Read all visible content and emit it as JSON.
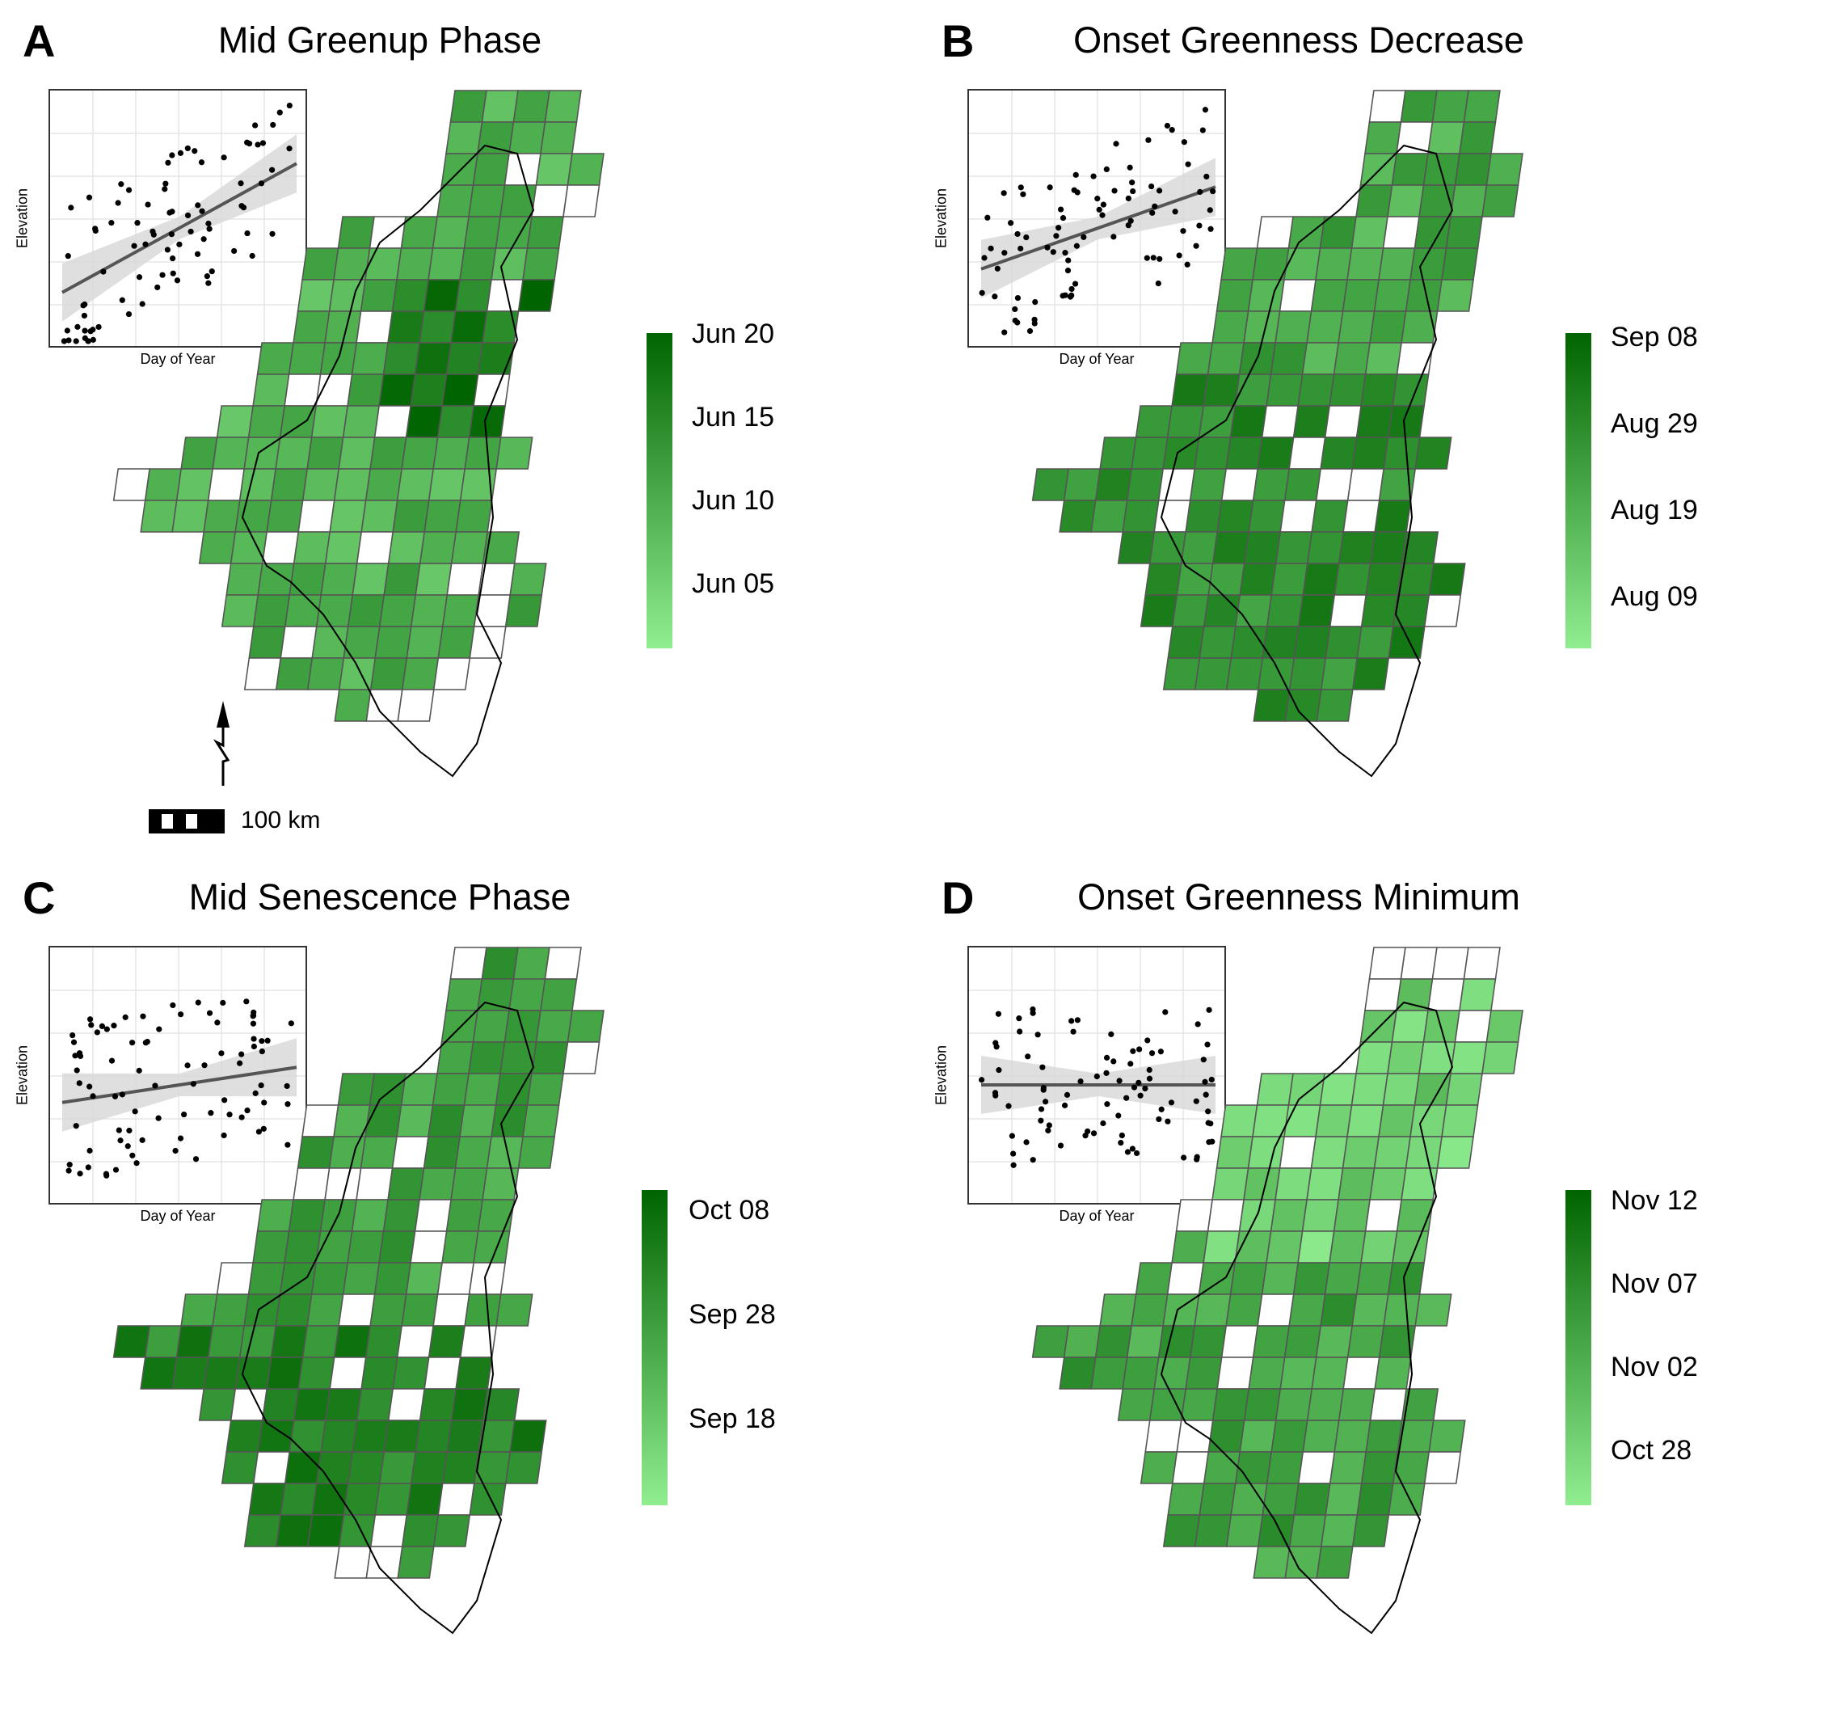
{
  "figure": {
    "panels": [
      {
        "letter": "A",
        "title": "Mid Greenup Phase",
        "inset": {
          "xlabel": "Day of Year",
          "ylabel": "Elevation",
          "trend": "positive"
        },
        "legend": {
          "labels": [
            "Jun 20",
            "Jun 15",
            "Jun 10",
            "Jun 05"
          ],
          "color_high": "#006400",
          "color_low": "#90EE90"
        }
      },
      {
        "letter": "B",
        "title": "Onset Greenness Decrease",
        "inset": {
          "xlabel": "Day of Year",
          "ylabel": "Elevation",
          "trend": "positive"
        },
        "legend": {
          "labels": [
            "Sep 08",
            "Aug 29",
            "Aug 19",
            "Aug 09"
          ],
          "color_high": "#006400",
          "color_low": "#90EE90"
        }
      },
      {
        "letter": "C",
        "title": "Mid Senescence Phase",
        "inset": {
          "xlabel": "Day of Year",
          "ylabel": "Elevation",
          "trend": "weak positive"
        },
        "legend": {
          "labels": [
            "Oct 08",
            "Sep 28",
            "Sep 18"
          ],
          "color_high": "#006400",
          "color_low": "#90EE90"
        }
      },
      {
        "letter": "D",
        "title": "Onset Greenness Minimum",
        "inset": {
          "xlabel": "Day of Year",
          "ylabel": "Elevation",
          "trend": "flat"
        },
        "legend": {
          "labels": [
            "Nov 12",
            "Nov 07",
            "Nov 02",
            "Oct 28"
          ],
          "color_high": "#006400",
          "color_low": "#90EE90"
        }
      }
    ],
    "scale_bar": {
      "label": "100 km"
    },
    "north_arrow": {
      "label": "N",
      "icon": "north-arrow-icon"
    }
  }
}
